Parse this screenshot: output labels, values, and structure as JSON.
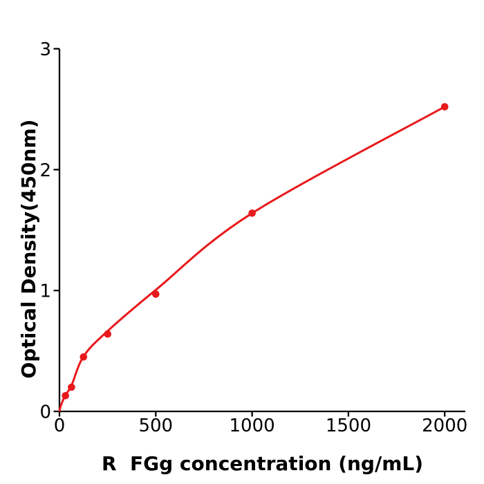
{
  "chart_data": {
    "type": "scatter",
    "title": "",
    "xlabel": "R  FGg concentration (ng/mL)",
    "ylabel": "Optical Density(450nm)",
    "series": [
      {
        "name": "standard-curve-points",
        "x": [
          31.25,
          62.5,
          125,
          250,
          500,
          1000,
          2000
        ],
        "y": [
          0.13,
          0.2,
          0.45,
          0.64,
          0.97,
          1.64,
          2.52
        ]
      }
    ],
    "fit_curve_anchors": [
      [
        0,
        0.005
      ],
      [
        10,
        0.06
      ],
      [
        31.25,
        0.135
      ],
      [
        62.5,
        0.215
      ],
      [
        125,
        0.455
      ],
      [
        250,
        0.665
      ],
      [
        500,
        1.005
      ],
      [
        1000,
        1.64
      ],
      [
        2000,
        2.52
      ]
    ],
    "x_ticks": [
      0,
      500,
      1000,
      1500,
      2000
    ],
    "y_ticks": [
      0,
      1,
      2,
      3
    ],
    "xlim": [
      0,
      2105
    ],
    "ylim": [
      0,
      3
    ],
    "grid": false,
    "legend_position": "none",
    "point_color": "#e8191c",
    "line_color": "#e8191c",
    "axis_color": "#000000",
    "text_color": "#000000"
  }
}
